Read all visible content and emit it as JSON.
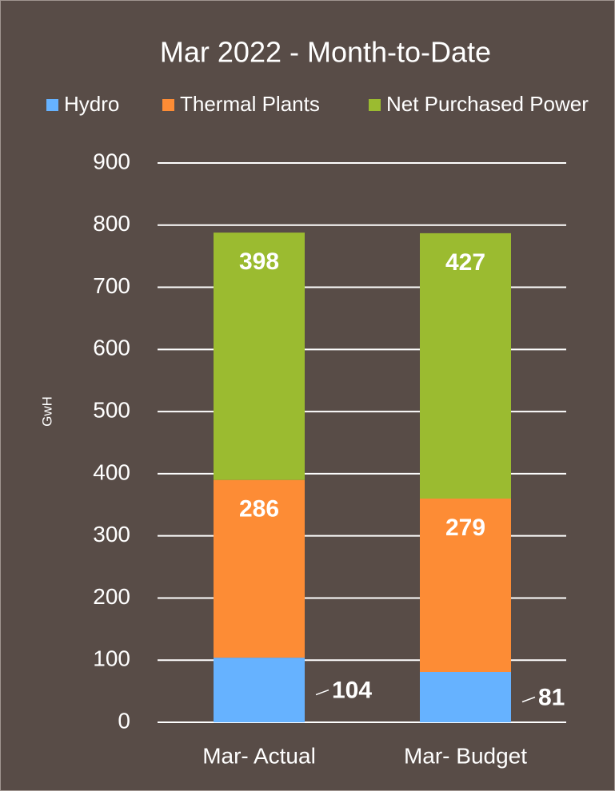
{
  "chart_data": {
    "type": "stacked_bar",
    "title": "Mar 2022 - Month-to-Date",
    "y_label": "GwH",
    "categories": [
      "Mar- Actual",
      "Mar- Budget"
    ],
    "series": [
      {
        "name": "Hydro",
        "color": "#66b2ff",
        "values": [
          104,
          81
        ]
      },
      {
        "name": "Thermal Plants",
        "color": "#fd8c35",
        "values": [
          286,
          279
        ]
      },
      {
        "name": "Net Purchased Power",
        "color": "#9bbb30",
        "values": [
          398,
          427
        ]
      }
    ],
    "ylim": [
      0,
      900
    ],
    "yticks": [
      0,
      100,
      200,
      300,
      400,
      500,
      600,
      700,
      800,
      900
    ],
    "grid": true,
    "legend": "top"
  }
}
